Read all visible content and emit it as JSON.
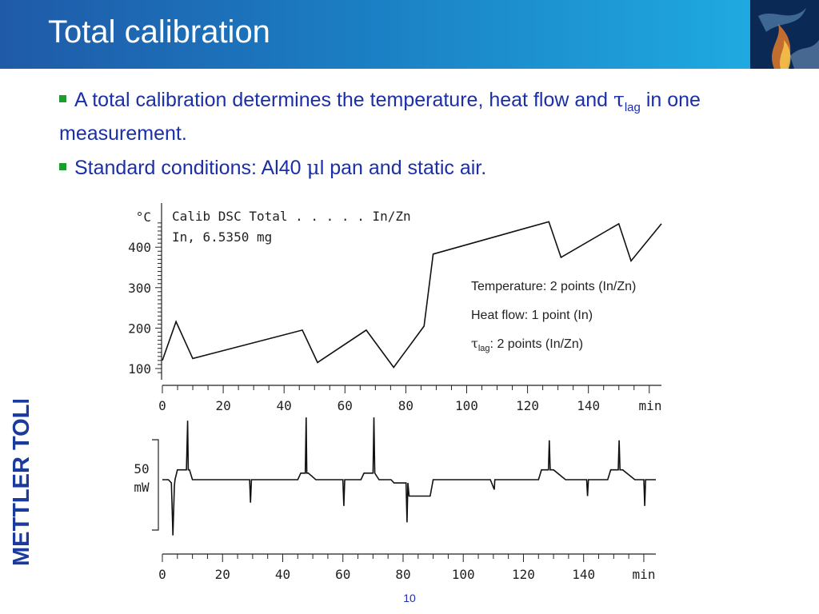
{
  "slide": {
    "title": "Total calibration",
    "bullet1_pre": "A total calibration determines the temperature, heat flow and ",
    "tau": "τ",
    "lag": "lag",
    "bullet1_post": " in one measurement.",
    "bullet2_pre": "Standard conditions: Al40 ",
    "mu": "μ",
    "bullet2_post": "l pan and static air.",
    "logo_text": "METTLER TOLEDO",
    "page_number": "10",
    "annotations": {
      "temperature": "Temperature: 2 points (In/Zn)",
      "heatflow": "Heat flow: 1 point (In)",
      "tau_symbol": "τ",
      "tau_sub": "lag",
      "tau_rest": ": 2 points (In/Zn)"
    },
    "colors": {
      "header_start": "#1f5aa8",
      "header_end": "#20b1e6",
      "bullet_text": "#1a2fa8",
      "bullet_marker": "#1e9c2f",
      "logo": "#1a3a9c"
    }
  },
  "chart_data": [
    {
      "type": "line",
      "title_lines": [
        "Calib DSC Total  . . . . . In/Zn",
        "In, 6.5350 mg"
      ],
      "ylabel": "°C",
      "xlabel": "min",
      "xlim": [
        0,
        164
      ],
      "ylim": [
        85,
        470
      ],
      "x_ticks": [
        0,
        20,
        40,
        60,
        80,
        100,
        120,
        140
      ],
      "y_ticks": [
        100,
        200,
        300,
        400
      ],
      "series": [
        {
          "x": [
            0,
            4.5,
            10,
            46,
            51,
            67,
            76,
            86,
            89,
            127,
            131,
            150,
            154,
            164
          ],
          "y": [
            120,
            216,
            125,
            195,
            115,
            195,
            103,
            205,
            383,
            463,
            375,
            458,
            366,
            458
          ]
        }
      ]
    },
    {
      "type": "line",
      "xlabel": "min",
      "scale_label": [
        "50",
        "mW"
      ],
      "xlim": [
        0,
        164
      ],
      "x_ticks": [
        0,
        20,
        40,
        60,
        80,
        100,
        120,
        140
      ],
      "series": [
        {
          "x": [
            0,
            2,
            3,
            3.5,
            4,
            4.2,
            5,
            8,
            8.4,
            8.6,
            9,
            10,
            11,
            29,
            29.3,
            29.6,
            30,
            45,
            46,
            47.5,
            47.8,
            48,
            48.5,
            51,
            52,
            60,
            60.3,
            60.6,
            61,
            66,
            67,
            70,
            70.3,
            70.6,
            72,
            76,
            77,
            81,
            81.3,
            81.6,
            82,
            85,
            85.3,
            89,
            90,
            109,
            110.3,
            110.5,
            111,
            125,
            126,
            128.3,
            128.6,
            128.9,
            130,
            134,
            135,
            141,
            141.3,
            141.6,
            142,
            148,
            149,
            151.5,
            151.8,
            152.1,
            153,
            157,
            158,
            160,
            160.3,
            160.6,
            161,
            164
          ],
          "y": [
            0,
            0,
            -1,
            -17,
            -2,
            0,
            3,
            3,
            18,
            3,
            3,
            0,
            0,
            0,
            -7,
            0,
            0,
            0,
            2,
            2,
            19,
            2,
            2,
            0,
            0,
            0,
            -8,
            0,
            0,
            0,
            2,
            2,
            19,
            2,
            0,
            0,
            -1,
            -1,
            -13,
            -1,
            -5,
            -5,
            -5,
            -5,
            0,
            0,
            -3,
            0,
            0,
            0,
            3,
            3,
            12,
            3,
            3,
            0,
            0,
            0,
            -5,
            0,
            0,
            0,
            3,
            3,
            12,
            3,
            3,
            0,
            0,
            0,
            -8,
            0,
            0,
            0
          ]
        }
      ]
    }
  ]
}
